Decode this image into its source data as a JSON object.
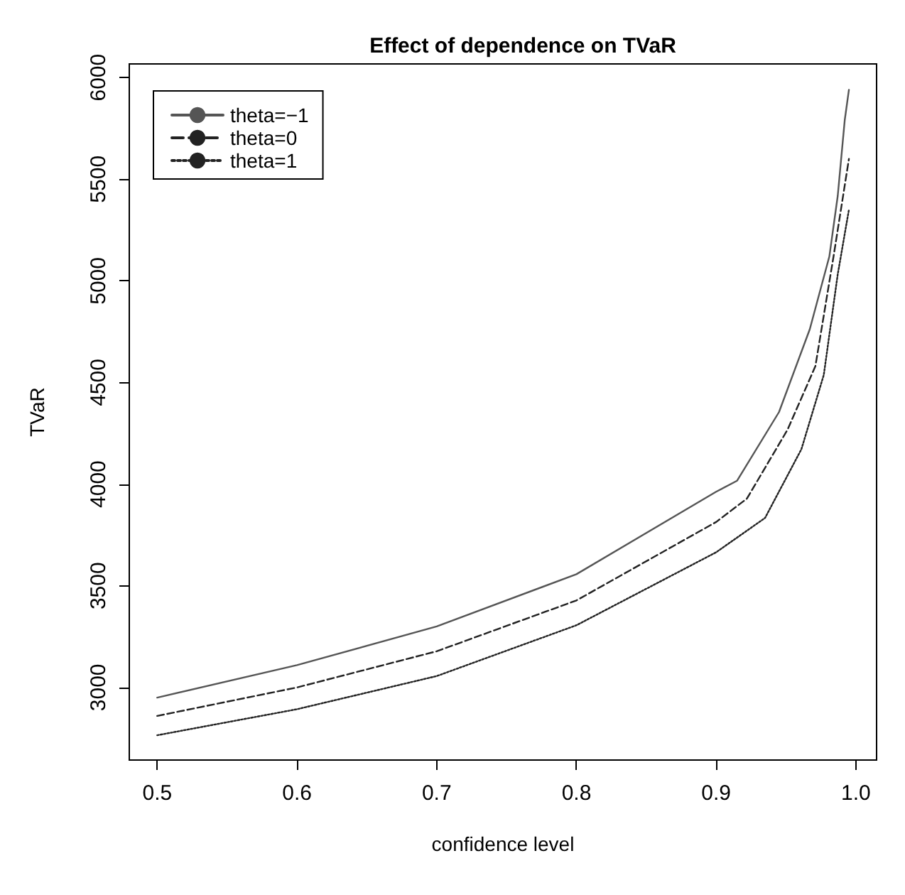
{
  "chart_data": {
    "type": "line",
    "title": "Effect of dependence on TVaR",
    "xlabel": "confidence level",
    "ylabel": "TVaR",
    "xlim": [
      0.48,
      1.0148
    ],
    "xticks": [
      0.5,
      0.6,
      0.7,
      0.8,
      0.9,
      {
        "value": 1.0,
        "label": "1.0"
      }
    ],
    "ylim": [
      2643,
      6067
    ],
    "yticks": [
      3000,
      3500,
      4000,
      4500,
      5000,
      5500,
      6000
    ],
    "grid": false,
    "legend": "top left",
    "marker": "none",
    "series": [
      {
        "name": "theta=−1",
        "color": "#555555",
        "line_style": "solid",
        "x": [
          0.5,
          0.6,
          0.7,
          0.8,
          0.9,
          0.915,
          0.945,
          0.967,
          0.981,
          0.987,
          0.992,
          0.995
        ],
        "values": [
          2950,
          3110,
          3300,
          3557,
          3963,
          4017,
          4355,
          4762,
          5120,
          5418,
          5790,
          5940
        ]
      },
      {
        "name": "theta=0",
        "color": "#222222",
        "line_style": "dashed",
        "x": [
          0.5,
          0.6,
          0.7,
          0.8,
          0.9,
          0.922,
          0.951,
          0.971,
          0.984,
          0.995
        ],
        "values": [
          2860,
          3000,
          3178,
          3428,
          3814,
          3929,
          4267,
          4580,
          5120,
          5600
        ]
      },
      {
        "name": "theta=1",
        "color": "#222222",
        "line_style": "dotted",
        "x": [
          0.5,
          0.6,
          0.7,
          0.8,
          0.9,
          0.935,
          0.961,
          0.977,
          0.987,
          0.995
        ],
        "values": [
          2765,
          2893,
          3056,
          3306,
          3665,
          3834,
          4172,
          4537,
          5032,
          5350
        ]
      }
    ]
  }
}
